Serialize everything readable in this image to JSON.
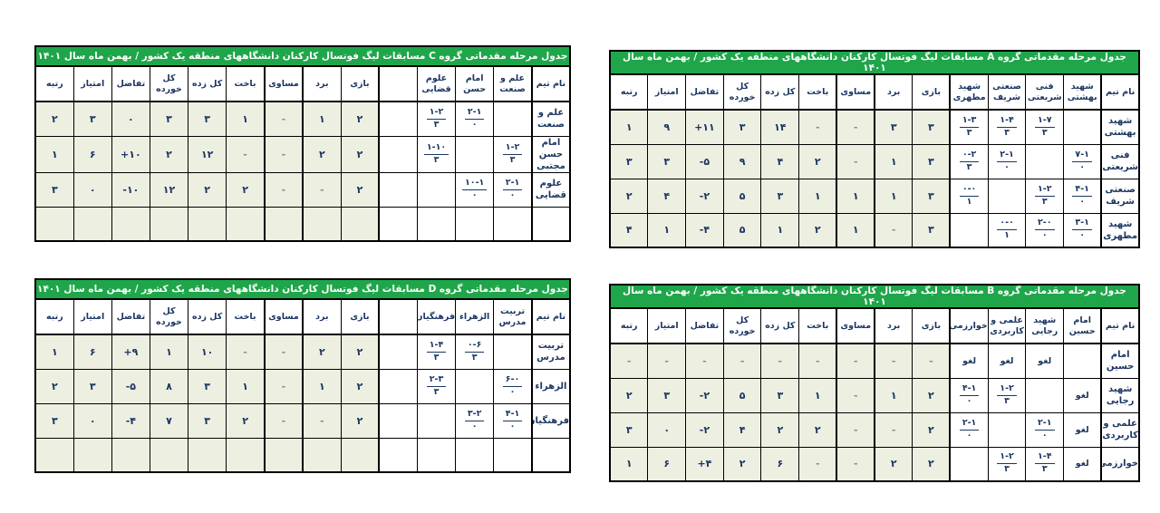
{
  "colors": {
    "header_green": "#1fa64a",
    "diagonal_blue": "#0e72c5",
    "rank_yellow": "#ffff00",
    "stat_cell_bg": "#edefe1",
    "text_navy": "#1c3662"
  },
  "name_header": "نام تیم",
  "stat_headers": [
    "بازی",
    "برد",
    "مساوی",
    "باخت",
    "کل زده",
    "کل خورده",
    "تفاضل",
    "امتیاز",
    "رتبه"
  ],
  "tables": [
    {
      "id": "group-c",
      "title": "جدول مرحله مقدماتی گروه C مسابقات لیگ فوتسال کارکنان دانشگاههای منطقه یک کشور / بهمن ماه سال ۱۴۰۱",
      "teams": [
        "علم و صنعت",
        "امام حسن",
        "علوم قضایی",
        ""
      ],
      "rows": [
        {
          "name": "علم و صنعت",
          "cells": [
            {
              "t": "self"
            },
            {
              "t": "score",
              "s": "۲-۱",
              "p": "۰"
            },
            {
              "t": "score",
              "s": "۱-۲",
              "p": "۳"
            },
            {
              "t": "blank"
            }
          ],
          "stats": [
            "۲",
            "۱",
            "-",
            "۱",
            "۳",
            "۳",
            "۰",
            "۳"
          ],
          "rank": "۲",
          "rank_hl": true
        },
        {
          "name": "امام حسن مجتبی",
          "cells": [
            {
              "t": "score",
              "s": "۱-۲",
              "p": "۳"
            },
            {
              "t": "self"
            },
            {
              "t": "score",
              "s": "۱-۱۰",
              "p": "۳"
            },
            {
              "t": "blank"
            }
          ],
          "stats": [
            "۲",
            "۲",
            "-",
            "-",
            "۱۲",
            "۲",
            "+۱۰",
            "۶"
          ],
          "rank": "۱",
          "rank_hl": true
        },
        {
          "name": "علوم قضایی",
          "cells": [
            {
              "t": "score",
              "s": "۲-۱",
              "p": "۰"
            },
            {
              "t": "score",
              "s": "۱۰-۱",
              "p": "۰"
            },
            {
              "t": "self"
            },
            {
              "t": "blank"
            }
          ],
          "stats": [
            "۲",
            "-",
            "-",
            "۲",
            "۲",
            "۱۲",
            "-۱۰",
            "۰"
          ],
          "rank": "۳",
          "rank_hl": false
        },
        {
          "name": "",
          "cells": [
            {
              "t": "blank"
            },
            {
              "t": "blank"
            },
            {
              "t": "blank"
            },
            {
              "t": "self"
            }
          ],
          "stats": [
            "",
            "",
            "",
            "",
            "",
            "",
            "",
            ""
          ],
          "rank": "",
          "rank_hl": false
        }
      ]
    },
    {
      "id": "group-a",
      "title": "جدول مرحله مقدماتی گروه A مسابقات لیگ فوتسال کارکنان دانشگاههای منطقه یک کشور / بهمن ماه سال ۱۴۰۱",
      "teams": [
        "شهید بهشتی",
        "فنی شریعتی",
        "صنعتی شریف",
        "شهید مطهری"
      ],
      "rows": [
        {
          "name": "شهید بهشتی",
          "cells": [
            {
              "t": "self"
            },
            {
              "t": "score",
              "s": "۱-۷",
              "p": "۳"
            },
            {
              "t": "score",
              "s": "۱-۴",
              "p": "۳"
            },
            {
              "t": "score",
              "s": "۱-۳",
              "p": "۳"
            }
          ],
          "stats": [
            "۳",
            "۳",
            "-",
            "-",
            "۱۴",
            "۳",
            "+۱۱",
            "۹"
          ],
          "rank": "۱",
          "rank_hl": true
        },
        {
          "name": "فنی شریعتی",
          "cells": [
            {
              "t": "score",
              "s": "۷-۱",
              "p": "۰"
            },
            {
              "t": "self"
            },
            {
              "t": "score",
              "s": "۲-۱",
              "p": "۰"
            },
            {
              "t": "score",
              "s": "۰-۲",
              "p": "۳"
            }
          ],
          "stats": [
            "۳",
            "۱",
            "-",
            "۲",
            "۴",
            "۹",
            "-۵",
            "۳"
          ],
          "rank": "۳",
          "rank_hl": false
        },
        {
          "name": "صنعتی شریف",
          "cells": [
            {
              "t": "score",
              "s": "۴-۱",
              "p": "۰"
            },
            {
              "t": "score",
              "s": "۱-۲",
              "p": "۳"
            },
            {
              "t": "self"
            },
            {
              "t": "score",
              "s": "۰-۰",
              "p": "۱"
            }
          ],
          "stats": [
            "۳",
            "۱",
            "۱",
            "۱",
            "۳",
            "۵",
            "-۲",
            "۴"
          ],
          "rank": "۲",
          "rank_hl": true
        },
        {
          "name": "شهید مطهری",
          "cells": [
            {
              "t": "score",
              "s": "۳-۱",
              "p": "۰"
            },
            {
              "t": "score",
              "s": "۲-۰",
              "p": "۰"
            },
            {
              "t": "score",
              "s": "۰-۰",
              "p": "۱"
            },
            {
              "t": "self"
            }
          ],
          "stats": [
            "۳",
            "-",
            "۱",
            "۲",
            "۱",
            "۵",
            "-۴",
            "۱"
          ],
          "rank": "۴",
          "rank_hl": false
        }
      ]
    },
    {
      "id": "group-d",
      "title": "جدول مرحله مقدماتی گروه D مسابقات لیگ فوتسال کارکنان دانشگاههای منطقه یک کشور / بهمن ماه سال ۱۴۰۱",
      "teams": [
        "تربیت مدرس",
        "الزهراء",
        "فرهنگیان",
        ""
      ],
      "rows": [
        {
          "name": "تربیت مدرس",
          "cells": [
            {
              "t": "self"
            },
            {
              "t": "score",
              "s": "۰-۶",
              "p": "۳"
            },
            {
              "t": "score",
              "s": "۱-۴",
              "p": "۳"
            },
            {
              "t": "blank"
            }
          ],
          "stats": [
            "۲",
            "۲",
            "-",
            "-",
            "۱۰",
            "۱",
            "+۹",
            "۶"
          ],
          "rank": "۱",
          "rank_hl": true
        },
        {
          "name": "الزهراء",
          "cells": [
            {
              "t": "score",
              "s": "۶-۰",
              "p": "۰"
            },
            {
              "t": "self"
            },
            {
              "t": "score",
              "s": "۲-۳",
              "p": "۳"
            },
            {
              "t": "blank"
            }
          ],
          "stats": [
            "۲",
            "۱",
            "-",
            "۱",
            "۳",
            "۸",
            "-۵",
            "۳"
          ],
          "rank": "۲",
          "rank_hl": true
        },
        {
          "name": "فرهنگیان",
          "cells": [
            {
              "t": "score",
              "s": "۴-۱",
              "p": "۰"
            },
            {
              "t": "score",
              "s": "۳-۲",
              "p": "۰"
            },
            {
              "t": "self"
            },
            {
              "t": "blank"
            }
          ],
          "stats": [
            "۲",
            "-",
            "-",
            "۲",
            "۳",
            "۷",
            "-۴",
            "۰"
          ],
          "rank": "۳",
          "rank_hl": false
        },
        {
          "name": "",
          "cells": [
            {
              "t": "blank"
            },
            {
              "t": "blank"
            },
            {
              "t": "blank"
            },
            {
              "t": "self"
            }
          ],
          "stats": [
            "",
            "",
            "",
            "",
            "",
            "",
            "",
            ""
          ],
          "rank": "",
          "rank_hl": false
        }
      ]
    },
    {
      "id": "group-b",
      "title": "جدول مرحله مقدماتی گروه B مسابقات لیگ فوتسال کارکنان دانشگاههای منطقه یک کشور / بهمن ماه سال ۱۴۰۱",
      "teams": [
        "امام حسین",
        "شهید رجایی",
        "علمی و کاربردی",
        "خوارزمی"
      ],
      "rows": [
        {
          "name": "امام حسین",
          "cells": [
            {
              "t": "self"
            },
            {
              "t": "cancel",
              "v": "لغو"
            },
            {
              "t": "cancel",
              "v": "لغو"
            },
            {
              "t": "cancel",
              "v": "لغو"
            }
          ],
          "stats": [
            "-",
            "-",
            "-",
            "-",
            "-",
            "-",
            "-",
            "-"
          ],
          "rank": "-",
          "rank_hl": false
        },
        {
          "name": "شهید رجایی",
          "cells": [
            {
              "t": "cancel",
              "v": "لغو"
            },
            {
              "t": "self"
            },
            {
              "t": "score",
              "s": "۱-۲",
              "p": "۳"
            },
            {
              "t": "score",
              "s": "۴-۱",
              "p": "۰"
            }
          ],
          "stats": [
            "۲",
            "۱",
            "-",
            "۱",
            "۳",
            "۵",
            "-۲",
            "۳"
          ],
          "rank": "۲",
          "rank_hl": true
        },
        {
          "name": "علمی و کاربردی",
          "cells": [
            {
              "t": "cancel",
              "v": "لغو"
            },
            {
              "t": "score",
              "s": "۲-۱",
              "p": "۰"
            },
            {
              "t": "self"
            },
            {
              "t": "score",
              "s": "۲-۱",
              "p": "۰"
            }
          ],
          "stats": [
            "۲",
            "-",
            "-",
            "۲",
            "۲",
            "۴",
            "-۲",
            "۰"
          ],
          "rank": "۳",
          "rank_hl": false
        },
        {
          "name": "خوارزمی",
          "cells": [
            {
              "t": "cancel",
              "v": "لغو"
            },
            {
              "t": "score",
              "s": "۱-۴",
              "p": "۳"
            },
            {
              "t": "score",
              "s": "۱-۲",
              "p": "۳"
            },
            {
              "t": "self"
            }
          ],
          "stats": [
            "۲",
            "۲",
            "-",
            "-",
            "۶",
            "۲",
            "+۴",
            "۶"
          ],
          "rank": "۱",
          "rank_hl": true
        }
      ]
    }
  ]
}
